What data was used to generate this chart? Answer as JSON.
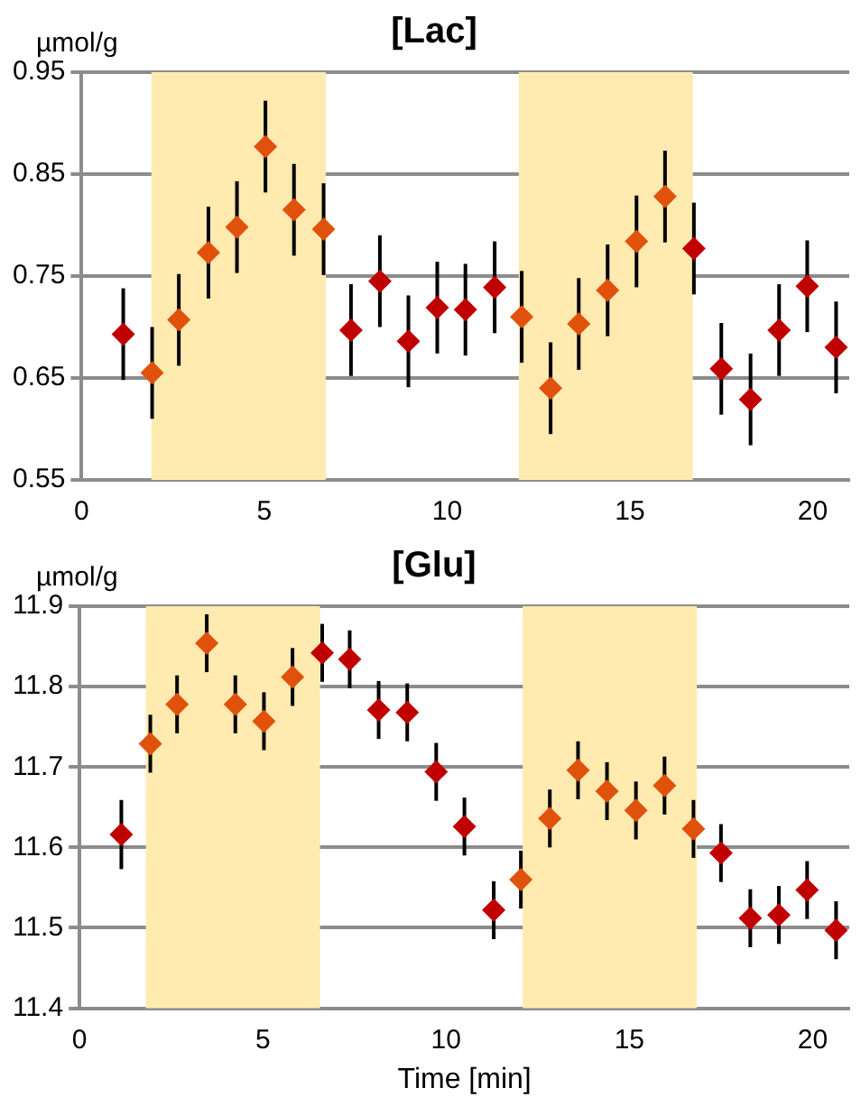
{
  "chart_data": [
    {
      "type": "scatter",
      "title": "[Lac]",
      "ylabel": "µmol/g",
      "x": [
        1.14,
        1.93,
        2.66,
        3.47,
        4.25,
        5.03,
        5.81,
        6.62,
        7.37,
        8.16,
        8.94,
        9.73,
        10.5,
        11.3,
        12.04,
        12.83,
        13.6,
        14.39,
        15.18,
        15.96,
        16.75,
        17.5,
        18.3,
        19.08,
        19.85,
        20.64
      ],
      "series": [
        {
          "colors": [
            "#c00000",
            "#e0520c",
            "#e0520c",
            "#e0520c",
            "#e0520c",
            "#e0520c",
            "#e0520c",
            "#e0520c",
            "#c00000",
            "#c00000",
            "#c00000",
            "#c00000",
            "#c00000",
            "#c00000",
            "#e0520c",
            "#e0520c",
            "#e0520c",
            "#e0520c",
            "#e0520c",
            "#e0520c",
            "#c00000",
            "#c00000",
            "#c00000",
            "#c00000",
            "#c00000",
            "#c00000"
          ],
          "values": [
            0.693,
            0.655,
            0.707,
            0.773,
            0.798,
            0.877,
            0.815,
            0.796,
            0.697,
            0.745,
            0.686,
            0.719,
            0.717,
            0.739,
            0.71,
            0.64,
            0.703,
            0.736,
            0.784,
            0.828,
            0.777,
            0.659,
            0.629,
            0.697,
            0.74,
            0.68
          ],
          "errors": [
            0.045,
            0.045,
            0.045,
            0.045,
            0.045,
            0.045,
            0.045,
            0.045,
            0.045,
            0.045,
            0.045,
            0.045,
            0.045,
            0.045,
            0.045,
            0.045,
            0.045,
            0.045,
            0.045,
            0.045,
            0.045,
            0.045,
            0.045,
            0.045,
            0.045,
            0.045
          ]
        }
      ],
      "xlim": [
        0,
        21
      ],
      "xticks": [
        0,
        5,
        10,
        15,
        20
      ],
      "ylim": [
        0.55,
        0.95
      ],
      "yticks": [
        0.55,
        0.65,
        0.75,
        0.85,
        0.95
      ],
      "grid": "y",
      "marker": "diamond",
      "bands": [
        {
          "axis": "x",
          "from": 1.91,
          "to": 6.68,
          "color": "#ffeab0"
        },
        {
          "axis": "x",
          "from": 11.96,
          "to": 16.72,
          "color": "#ffeab0"
        }
      ]
    },
    {
      "type": "scatter",
      "title": "[Glu]",
      "ylabel": "µmol/g",
      "xlabel": "Time [min]",
      "x": [
        1.14,
        1.93,
        2.66,
        3.47,
        4.25,
        5.03,
        5.81,
        6.62,
        7.37,
        8.16,
        8.94,
        9.73,
        10.5,
        11.3,
        12.04,
        12.83,
        13.6,
        14.39,
        15.18,
        15.96,
        16.75,
        17.5,
        18.3,
        19.08,
        19.85,
        20.64
      ],
      "series": [
        {
          "colors": [
            "#c00000",
            "#e0520c",
            "#e0520c",
            "#e0520c",
            "#e0520c",
            "#e0520c",
            "#e0520c",
            "#c00000",
            "#c00000",
            "#c00000",
            "#c00000",
            "#c00000",
            "#c00000",
            "#c00000",
            "#e0520c",
            "#e0520c",
            "#e0520c",
            "#e0520c",
            "#e0520c",
            "#e0520c",
            "#e0520c",
            "#c00000",
            "#c00000",
            "#c00000",
            "#c00000",
            "#c00000"
          ],
          "values": [
            11.616,
            11.729,
            11.778,
            11.854,
            11.778,
            11.757,
            11.812,
            11.842,
            11.834,
            11.771,
            11.768,
            11.694,
            11.626,
            11.522,
            11.56,
            11.636,
            11.696,
            11.67,
            11.646,
            11.677,
            11.623,
            11.593,
            11.512,
            11.516,
            11.547,
            11.497
          ],
          "errors": [
            0.043,
            0.036,
            0.036,
            0.036,
            0.036,
            0.036,
            0.036,
            0.036,
            0.036,
            0.036,
            0.036,
            0.036,
            0.036,
            0.036,
            0.036,
            0.036,
            0.036,
            0.036,
            0.036,
            0.036,
            0.036,
            0.036,
            0.036,
            0.036,
            0.036,
            0.036
          ]
        }
      ],
      "xlim": [
        0,
        21
      ],
      "xticks": [
        0,
        5,
        10,
        15,
        20
      ],
      "ylim": [
        11.4,
        11.9
      ],
      "yticks": [
        11.4,
        11.5,
        11.6,
        11.7,
        11.8,
        11.9
      ],
      "grid": "y",
      "marker": "diamond",
      "bands": [
        {
          "axis": "x",
          "from": 1.81,
          "to": 6.56,
          "color": "#ffeab0"
        },
        {
          "axis": "x",
          "from": 12.09,
          "to": 16.84,
          "color": "#ffeab0"
        }
      ]
    }
  ]
}
